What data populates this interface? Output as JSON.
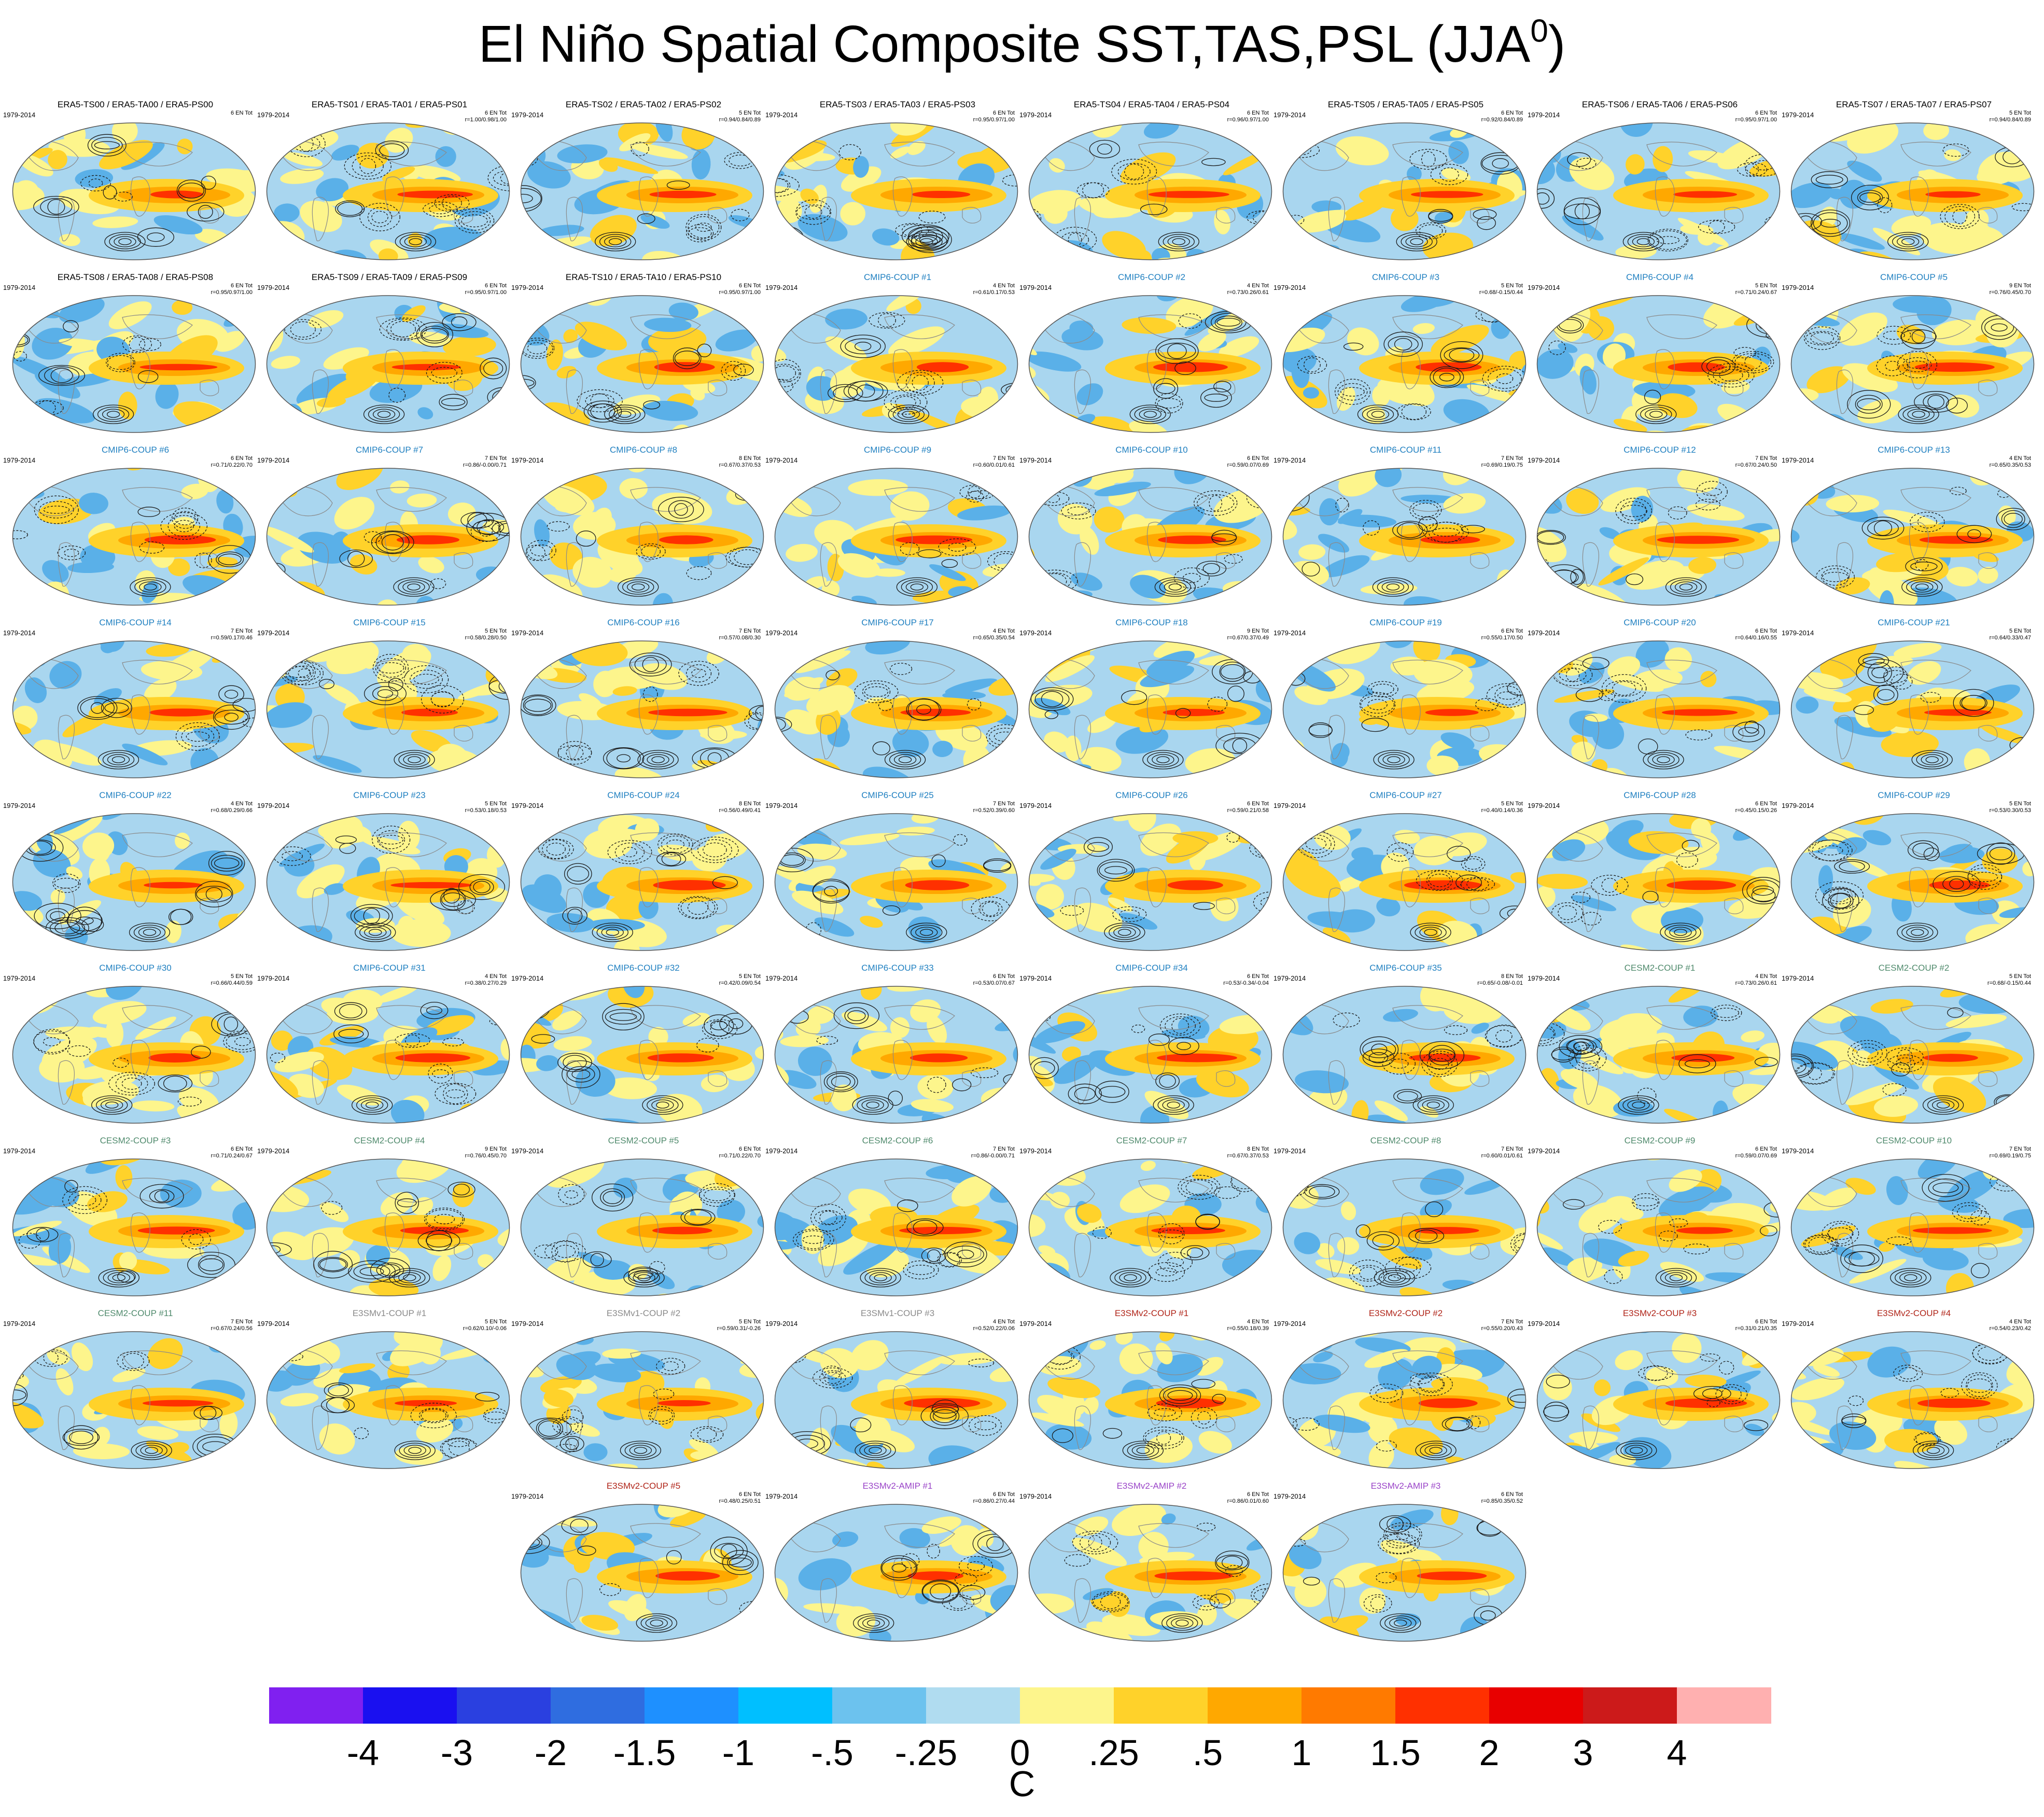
{
  "figure": {
    "title_main": "El Niño Spatial Composite SST,TAS,PSL (JJA",
    "title_sup": "0",
    "title_close": ")"
  },
  "chart_data": {
    "type": "heatmap",
    "description_kind": "spatial composite maps (filled contours SST/TAS, line contours PSL)",
    "units": "C",
    "panels": [
      {
        "title": "ERA5-TS00 / ERA5-TA00 / ERA5-PS00",
        "group": "obs",
        "left": "1979-2014",
        "right1": "6 EN Tot",
        "right2": ""
      },
      {
        "title": "ERA5-TS01 / ERA5-TA01 / ERA5-PS01",
        "group": "obs",
        "left": "1979-2014",
        "right1": "6 EN Tot",
        "right2": "r=1.00/0.98/1.00"
      },
      {
        "title": "ERA5-TS02 / ERA5-TA02 / ERA5-PS02",
        "group": "obs",
        "left": "1979-2014",
        "right1": "5 EN Tot",
        "right2": "r=0.94/0.84/0.89"
      },
      {
        "title": "ERA5-TS03 / ERA5-TA03 / ERA5-PS03",
        "group": "obs",
        "left": "1979-2014",
        "right1": "6 EN Tot",
        "right2": "r=0.95/0.97/1.00"
      },
      {
        "title": "ERA5-TS04 / ERA5-TA04 / ERA5-PS04",
        "group": "obs",
        "left": "1979-2014",
        "right1": "6 EN Tot",
        "right2": "r=0.96/0.97/1.00"
      },
      {
        "title": "ERA5-TS05 / ERA5-TA05 / ERA5-PS05",
        "group": "obs",
        "left": "1979-2014",
        "right1": "6 EN Tot",
        "right2": "r=0.92/0.84/0.89"
      },
      {
        "title": "ERA5-TS06 / ERA5-TA06 / ERA5-PS06",
        "group": "obs",
        "left": "1979-2014",
        "right1": "6 EN Tot",
        "right2": "r=0.95/0.97/1.00"
      },
      {
        "title": "ERA5-TS07 / ERA5-TA07 / ERA5-PS07",
        "group": "obs",
        "left": "1979-2014",
        "right1": "5 EN Tot",
        "right2": "r=0.94/0.84/0.89"
      },
      {
        "title": "ERA5-TS08 / ERA5-TA08 / ERA5-PS08",
        "group": "obs",
        "left": "1979-2014",
        "right1": "6 EN Tot",
        "right2": "r=0.95/0.97/1.00"
      },
      {
        "title": "ERA5-TS09 / ERA5-TA09 / ERA5-PS09",
        "group": "obs",
        "left": "1979-2014",
        "right1": "6 EN Tot",
        "right2": "r=0.95/0.97/1.00"
      },
      {
        "title": "ERA5-TS10 / ERA5-TA10 / ERA5-PS10",
        "group": "obs",
        "left": "1979-2014",
        "right1": "6 EN Tot",
        "right2": "r=0.95/0.97/1.00"
      },
      {
        "title": "CMIP6-COUP  #1",
        "group": "cmip6",
        "left": "1979-2014",
        "right1": "4 EN Tot",
        "right2": "r=0.61/0.17/0.53"
      },
      {
        "title": "CMIP6-COUP  #2",
        "group": "cmip6",
        "left": "1979-2014",
        "right1": "4 EN Tot",
        "right2": "r=0.73/0.26/0.61"
      },
      {
        "title": "CMIP6-COUP  #3",
        "group": "cmip6",
        "left": "1979-2014",
        "right1": "5 EN Tot",
        "right2": "r=0.68/-0.15/0.44"
      },
      {
        "title": "CMIP6-COUP  #4",
        "group": "cmip6",
        "left": "1979-2014",
        "right1": "5 EN Tot",
        "right2": "r=0.71/0.24/0.67"
      },
      {
        "title": "CMIP6-COUP  #5",
        "group": "cmip6",
        "left": "1979-2014",
        "right1": "9 EN Tot",
        "right2": "r=0.76/0.45/0.70"
      },
      {
        "title": "CMIP6-COUP  #6",
        "group": "cmip6",
        "left": "1979-2014",
        "right1": "6 EN Tot",
        "right2": "r=0.71/0.22/0.70"
      },
      {
        "title": "CMIP6-COUP  #7",
        "group": "cmip6",
        "left": "1979-2014",
        "right1": "7 EN Tot",
        "right2": "r=0.86/-0.00/0.71"
      },
      {
        "title": "CMIP6-COUP  #8",
        "group": "cmip6",
        "left": "1979-2014",
        "right1": "8 EN Tot",
        "right2": "r=0.67/0.37/0.53"
      },
      {
        "title": "CMIP6-COUP  #9",
        "group": "cmip6",
        "left": "1979-2014",
        "right1": "7 EN Tot",
        "right2": "r=0.60/0.01/0.61"
      },
      {
        "title": "CMIP6-COUP  #10",
        "group": "cmip6",
        "left": "1979-2014",
        "right1": "6 EN Tot",
        "right2": "r=0.59/0.07/0.69"
      },
      {
        "title": "CMIP6-COUP  #11",
        "group": "cmip6",
        "left": "1979-2014",
        "right1": "7 EN Tot",
        "right2": "r=0.69/0.19/0.75"
      },
      {
        "title": "CMIP6-COUP  #12",
        "group": "cmip6",
        "left": "1979-2014",
        "right1": "7 EN Tot",
        "right2": "r=0.67/0.24/0.50"
      },
      {
        "title": "CMIP6-COUP  #13",
        "group": "cmip6",
        "left": "1979-2014",
        "right1": "4 EN Tot",
        "right2": "r=0.65/0.35/0.53"
      },
      {
        "title": "CMIP6-COUP  #14",
        "group": "cmip6",
        "left": "1979-2014",
        "right1": "7 EN Tot",
        "right2": "r=0.59/0.17/0.46"
      },
      {
        "title": "CMIP6-COUP  #15",
        "group": "cmip6",
        "left": "1979-2014",
        "right1": "5 EN Tot",
        "right2": "r=0.58/0.28/0.50"
      },
      {
        "title": "CMIP6-COUP  #16",
        "group": "cmip6",
        "left": "1979-2014",
        "right1": "7 EN Tot",
        "right2": "r=0.57/0.08/0.30"
      },
      {
        "title": "CMIP6-COUP  #17",
        "group": "cmip6",
        "left": "1979-2014",
        "right1": "4 EN Tot",
        "right2": "r=0.65/0.35/0.54"
      },
      {
        "title": "CMIP6-COUP  #18",
        "group": "cmip6",
        "left": "1979-2014",
        "right1": "9 EN Tot",
        "right2": "r=0.67/0.37/0.49"
      },
      {
        "title": "CMIP6-COUP  #19",
        "group": "cmip6",
        "left": "1979-2014",
        "right1": "6 EN Tot",
        "right2": "r=0.55/0.17/0.50"
      },
      {
        "title": "CMIP6-COUP  #20",
        "group": "cmip6",
        "left": "1979-2014",
        "right1": "6 EN Tot",
        "right2": "r=0.64/0.16/0.55"
      },
      {
        "title": "CMIP6-COUP  #21",
        "group": "cmip6",
        "left": "1979-2014",
        "right1": "5 EN Tot",
        "right2": "r=0.64/0.33/0.47"
      },
      {
        "title": "CMIP6-COUP  #22",
        "group": "cmip6",
        "left": "1979-2014",
        "right1": "4 EN Tot",
        "right2": "r=0.68/0.29/0.66"
      },
      {
        "title": "CMIP6-COUP  #23",
        "group": "cmip6",
        "left": "1979-2014",
        "right1": "5 EN Tot",
        "right2": "r=0.53/0.18/0.53"
      },
      {
        "title": "CMIP6-COUP  #24",
        "group": "cmip6",
        "left": "1979-2014",
        "right1": "8 EN Tot",
        "right2": "r=0.56/0.49/0.41"
      },
      {
        "title": "CMIP6-COUP  #25",
        "group": "cmip6",
        "left": "1979-2014",
        "right1": "7 EN Tot",
        "right2": "r=0.52/0.39/0.60"
      },
      {
        "title": "CMIP6-COUP  #26",
        "group": "cmip6",
        "left": "1979-2014",
        "right1": "6 EN Tot",
        "right2": "r=0.59/0.21/0.58"
      },
      {
        "title": "CMIP6-COUP  #27",
        "group": "cmip6",
        "left": "1979-2014",
        "right1": "5 EN Tot",
        "right2": "r=0.40/0.14/0.36"
      },
      {
        "title": "CMIP6-COUP  #28",
        "group": "cmip6",
        "left": "1979-2014",
        "right1": "6 EN Tot",
        "right2": "r=0.45/0.15/0.26"
      },
      {
        "title": "CMIP6-COUP  #29",
        "group": "cmip6",
        "left": "1979-2014",
        "right1": "5 EN Tot",
        "right2": "r=0.53/0.30/0.53"
      },
      {
        "title": "CMIP6-COUP  #30",
        "group": "cmip6",
        "left": "1979-2014",
        "right1": "5 EN Tot",
        "right2": "r=0.66/0.44/0.59"
      },
      {
        "title": "CMIP6-COUP  #31",
        "group": "cmip6",
        "left": "1979-2014",
        "right1": "4 EN Tot",
        "right2": "r=0.38/0.27/0.29"
      },
      {
        "title": "CMIP6-COUP  #32",
        "group": "cmip6",
        "left": "1979-2014",
        "right1": "5 EN Tot",
        "right2": "r=0.42/0.09/0.54"
      },
      {
        "title": "CMIP6-COUP  #33",
        "group": "cmip6",
        "left": "1979-2014",
        "right1": "6 EN Tot",
        "right2": "r=0.53/0.07/0.67"
      },
      {
        "title": "CMIP6-COUP  #34",
        "group": "cmip6",
        "left": "1979-2014",
        "right1": "6 EN Tot",
        "right2": "r=0.53/-0.34/-0.04"
      },
      {
        "title": "CMIP6-COUP  #35",
        "group": "cmip6",
        "left": "1979-2014",
        "right1": "8 EN Tot",
        "right2": "r=0.65/-0.08/-0.01"
      },
      {
        "title": "CESM2-COUP  #1",
        "group": "cesm2",
        "left": "1979-2014",
        "right1": "4 EN Tot",
        "right2": "r=0.73/0.26/0.61"
      },
      {
        "title": "CESM2-COUP  #2",
        "group": "cesm2",
        "left": "1979-2014",
        "right1": "5 EN Tot",
        "right2": "r=0.68/-0.15/0.44"
      },
      {
        "title": "CESM2-COUP  #3",
        "group": "cesm2",
        "left": "1979-2014",
        "right1": "6 EN Tot",
        "right2": "r=0.71/0.24/0.67"
      },
      {
        "title": "CESM2-COUP  #4",
        "group": "cesm2",
        "left": "1979-2014",
        "right1": "9 EN Tot",
        "right2": "r=0.76/0.45/0.70"
      },
      {
        "title": "CESM2-COUP  #5",
        "group": "cesm2",
        "left": "1979-2014",
        "right1": "6 EN Tot",
        "right2": "r=0.71/0.22/0.70"
      },
      {
        "title": "CESM2-COUP  #6",
        "group": "cesm2",
        "left": "1979-2014",
        "right1": "7 EN Tot",
        "right2": "r=0.86/-0.00/0.71"
      },
      {
        "title": "CESM2-COUP  #7",
        "group": "cesm2",
        "left": "1979-2014",
        "right1": "8 EN Tot",
        "right2": "r=0.67/0.37/0.53"
      },
      {
        "title": "CESM2-COUP  #8",
        "group": "cesm2",
        "left": "1979-2014",
        "right1": "7 EN Tot",
        "right2": "r=0.60/0.01/0.61"
      },
      {
        "title": "CESM2-COUP  #9",
        "group": "cesm2",
        "left": "1979-2014",
        "right1": "6 EN Tot",
        "right2": "r=0.59/0.07/0.69"
      },
      {
        "title": "CESM2-COUP  #10",
        "group": "cesm2",
        "left": "1979-2014",
        "right1": "7 EN Tot",
        "right2": "r=0.69/0.19/0.75"
      },
      {
        "title": "CESM2-COUP  #11",
        "group": "cesm2",
        "left": "1979-2014",
        "right1": "7 EN Tot",
        "right2": "r=0.67/0.24/0.56"
      },
      {
        "title": "E3SMv1-COUP  #1",
        "group": "e3smv1",
        "left": "1979-2014",
        "right1": "5 EN Tot",
        "right2": "r=0.62/0.10/-0.06"
      },
      {
        "title": "E3SMv1-COUP  #2",
        "group": "e3smv1",
        "left": "1979-2014",
        "right1": "5 EN Tot",
        "right2": "r=0.59/0.31/-0.26"
      },
      {
        "title": "E3SMv1-COUP  #3",
        "group": "e3smv1",
        "left": "1979-2014",
        "right1": "4 EN Tot",
        "right2": "r=0.52/0.22/0.06"
      },
      {
        "title": "E3SMv2-COUP  #1",
        "group": "e3smv2",
        "left": "1979-2014",
        "right1": "4 EN Tot",
        "right2": "r=0.55/0.18/0.39"
      },
      {
        "title": "E3SMv2-COUP  #2",
        "group": "e3smv2",
        "left": "1979-2014",
        "right1": "7 EN Tot",
        "right2": "r=0.55/0.20/0.43"
      },
      {
        "title": "E3SMv2-COUP  #3",
        "group": "e3smv2",
        "left": "1979-2014",
        "right1": "6 EN Tot",
        "right2": "r=0.31/0.21/0.35"
      },
      {
        "title": "E3SMv2-COUP  #4",
        "group": "e3smv2",
        "left": "1979-2014",
        "right1": "4 EN Tot",
        "right2": "r=0.54/0.23/0.42"
      },
      {
        "title": "E3SMv2-COUP  #5",
        "group": "e3smv2",
        "left": "1979-2014",
        "right1": "6 EN Tot",
        "right2": "r=0.48/0.25/0.51"
      },
      {
        "title": "E3SMv2-AMIP  #1",
        "group": "amip",
        "left": "1979-2014",
        "right1": "6 EN Tot",
        "right2": "r=0.86/0.27/0.44"
      },
      {
        "title": "E3SMv2-AMIP  #2",
        "group": "amip",
        "left": "1979-2014",
        "right1": "6 EN Tot",
        "right2": "r=0.86/0.01/0.60"
      },
      {
        "title": "E3SMv2-AMIP  #3",
        "group": "amip",
        "left": "1979-2014",
        "right1": "6 EN Tot",
        "right2": "r=0.85/0.35/0.52"
      }
    ],
    "colorbar": {
      "unit_label": "C",
      "tick_labels": [
        "-4",
        "-3",
        "-2",
        "-1.5",
        "-1",
        "-.5",
        "-.25",
        "0",
        ".25",
        ".5",
        "1",
        "1.5",
        "2",
        "3",
        "4"
      ],
      "colors": [
        "#8020f0",
        "#1a10f0",
        "#2a40e0",
        "#2f6de0",
        "#1e90ff",
        "#00bfff",
        "#6cc2ee",
        "#b0dcf0",
        "#fdf58c",
        "#ffd22a",
        "#ffa800",
        "#ff7a00",
        "#ff3000",
        "#e80000",
        "#cc1a1a",
        "#ffb0b0"
      ]
    }
  },
  "group_colors": {
    "obs": "#000000",
    "cmip6": "#1e7fc0",
    "cesm2": "#4f8a6c",
    "e3smv1": "#8a8a8a",
    "e3smv2": "#b02418",
    "amip": "#9a44c8"
  },
  "map_colors": {
    "blue_light": "#a9d6ef",
    "blue_mid": "#5ab0e8",
    "yellow": "#fdf58c",
    "gold": "#ffd22a",
    "orange": "#ffa800",
    "red": "#ff3000",
    "land_outline": "#8a8a8a",
    "contour": "#1a1a1a"
  }
}
